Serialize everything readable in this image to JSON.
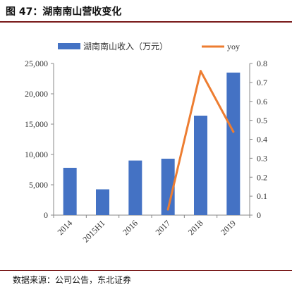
{
  "title": "图 47：湖南南山营收变化",
  "source": "数据来源：公司公告，东北证券",
  "chart_data": {
    "type": "bar",
    "categories": [
      "2014",
      "2015H1",
      "2016",
      "2017",
      "2018",
      "2019"
    ],
    "series": [
      {
        "name": "湖南南山收入（万元）",
        "type": "bar",
        "axis": "left",
        "color": "#4472c4",
        "values": [
          7800,
          4250,
          9000,
          9300,
          16400,
          23500
        ]
      },
      {
        "name": "yoy",
        "type": "line",
        "axis": "right",
        "color": "#ed7d31",
        "values": [
          null,
          null,
          null,
          0.03,
          0.76,
          0.44
        ]
      }
    ],
    "y_left": {
      "ylim": [
        0,
        25000
      ],
      "ticks": [
        0,
        5000,
        10000,
        15000,
        20000,
        25000
      ],
      "tick_labels": [
        "0",
        "5,000",
        "10,000",
        "15,000",
        "20,000",
        "25,000"
      ]
    },
    "y_right": {
      "ylim": [
        0,
        0.8
      ],
      "ticks": [
        0,
        0.1,
        0.2,
        0.3,
        0.4,
        0.5,
        0.6,
        0.7,
        0.8
      ],
      "tick_labels": [
        "0",
        "0.1",
        "0.2",
        "0.3",
        "0.4",
        "0.5",
        "0.6",
        "0.7",
        "0.8"
      ]
    },
    "legend_position": "top",
    "grid": false
  }
}
